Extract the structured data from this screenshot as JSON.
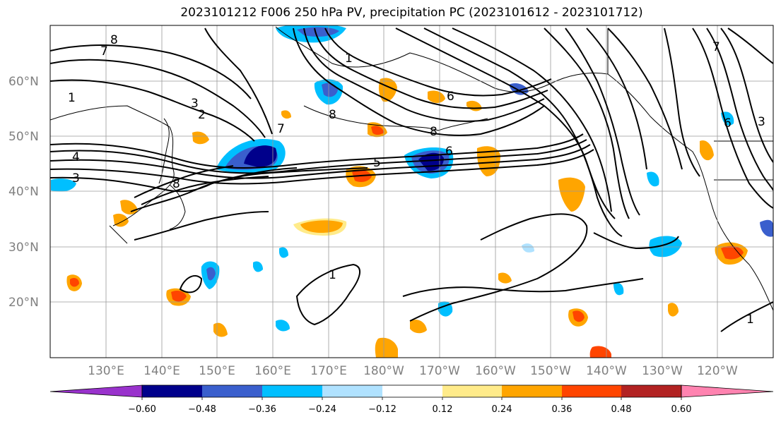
{
  "title": "2023101212 F006 250 hPa PV, precipitation PC (2023101612 - 2023101712)",
  "map": {
    "lat_labels": [
      "60°N",
      "50°N",
      "40°N",
      "30°N",
      "20°N"
    ],
    "lon_labels": [
      "130°E",
      "140°E",
      "150°E",
      "160°E",
      "170°E",
      "180°W",
      "170°W",
      "160°W",
      "150°W",
      "140°W",
      "130°W",
      "120°W"
    ],
    "contour_labels": [
      "8",
      "7",
      "1",
      "3",
      "2",
      "4",
      "3",
      "7",
      "8",
      "6",
      "5",
      "1",
      "8",
      "6",
      "1",
      "8",
      "7",
      "3",
      "6",
      "1"
    ]
  },
  "colorbar": {
    "ticks": [
      "−0.60",
      "−0.48",
      "−0.36",
      "−0.24",
      "−0.12",
      "0.12",
      "0.24",
      "0.36",
      "0.48",
      "0.60"
    ],
    "colors": [
      "#9932cc",
      "#00008b",
      "#3a5fcd",
      "#00bfff",
      "#b0e2ff",
      "#ffffff",
      "#ffeb8a",
      "#ffa500",
      "#ff4500",
      "#b22222",
      "#ff83b0"
    ]
  }
}
